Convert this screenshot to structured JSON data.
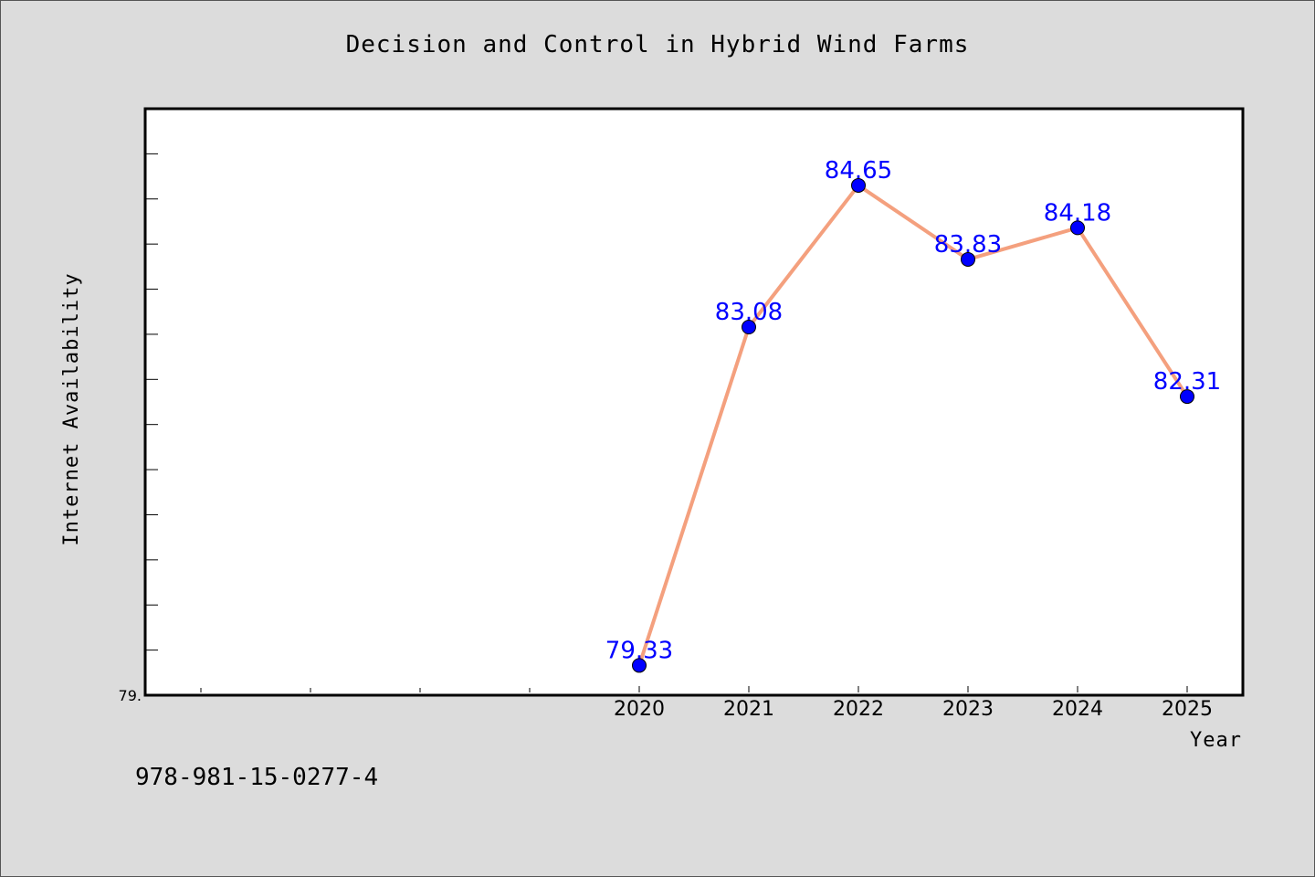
{
  "chart_data": {
    "type": "line",
    "title": "Decision and Control in Hybrid Wind Farms",
    "xlabel": "Year",
    "ylabel": "Internet Availability",
    "categories": [
      "2020",
      "2021",
      "2022",
      "2023",
      "2024",
      "2025"
    ],
    "series": [
      {
        "values": [
          79.33,
          83.08,
          84.65,
          83.83,
          84.18,
          82.31
        ],
        "data_labels": [
          "79.33",
          "83.08",
          "84.65",
          "83.83",
          "84.18",
          "82.31"
        ]
      }
    ],
    "ylim": [
      79.0,
      85.5
    ],
    "y_tick_labels": [
      {
        "value": 79.0,
        "label": "79."
      }
    ],
    "y_minor_tick_step": 0.5,
    "grid": false,
    "legend": "none",
    "line_color": "#f4a07e",
    "marker_color": "#0000ff",
    "label_color": "#0000ff"
  },
  "footer": {
    "isbn": "978-981-15-0277-4"
  }
}
